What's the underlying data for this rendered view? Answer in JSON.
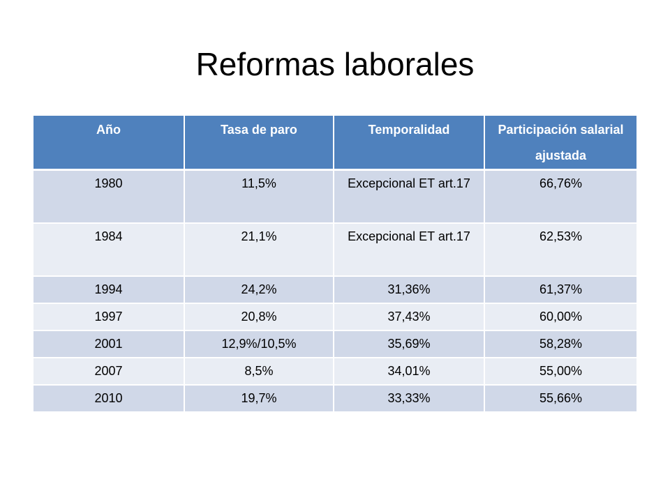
{
  "title": "Reformas laborales",
  "table": {
    "headers": [
      "Año",
      "Tasa de paro",
      "Temporalidad",
      "Participación salarial ajustada"
    ],
    "rows": [
      [
        "1980",
        "11,5%",
        "Excepcional ET art.17",
        "66,76%"
      ],
      [
        "1984",
        "21,1%",
        "Excepcional ET art.17",
        "62,53%"
      ],
      [
        "1994",
        "24,2%",
        "31,36%",
        "61,37%"
      ],
      [
        "1997",
        "20,8%",
        "37,43%",
        "60,00%"
      ],
      [
        "2001",
        "12,9%/10,5%",
        "35,69%",
        "58,28%"
      ],
      [
        "2007",
        "8,5%",
        "34,01%",
        "55,00%"
      ],
      [
        "2010",
        "19,7%",
        "33,33%",
        "55,66%"
      ]
    ]
  },
  "colors": {
    "header_bg": "#4f81bd",
    "row_odd_bg": "#d0d8e8",
    "row_even_bg": "#e9edf4"
  }
}
